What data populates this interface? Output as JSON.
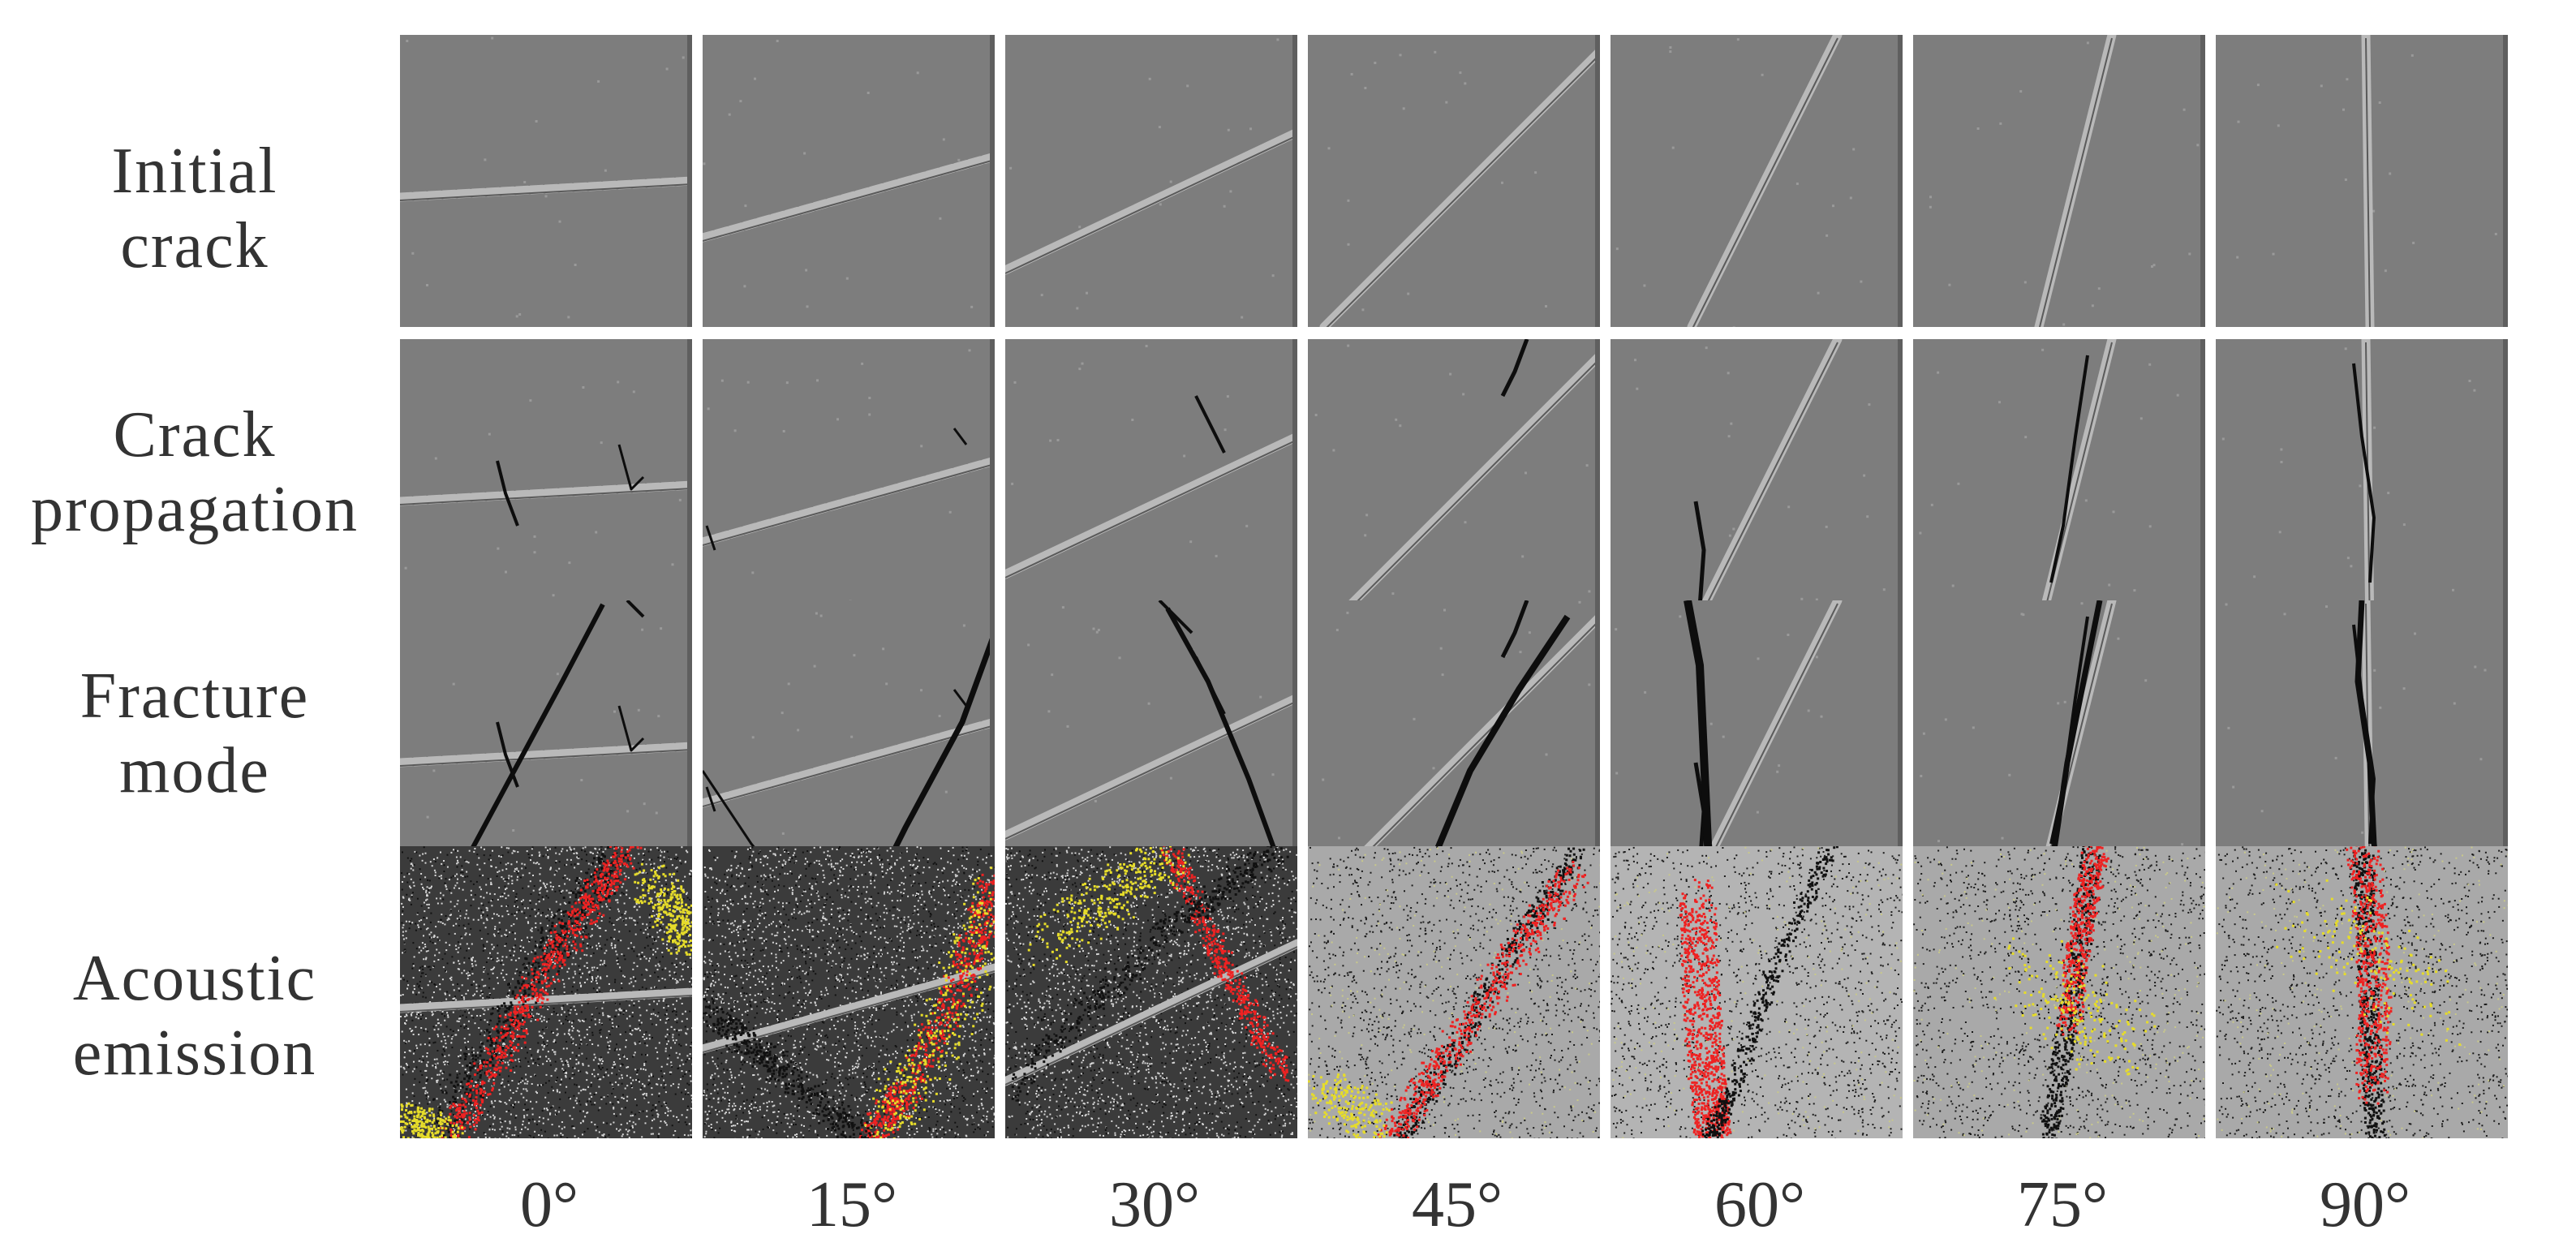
{
  "rows": [
    {
      "label_line1": "Initial",
      "label_line2": "crack"
    },
    {
      "label_line1": "Crack",
      "label_line2": "propagation"
    },
    {
      "label_line1": "Fracture",
      "label_line2": "mode"
    },
    {
      "label_line1": "Acoustic",
      "label_line2": "emission"
    }
  ],
  "columns": [
    {
      "label": "0°",
      "angle": 0
    },
    {
      "label": "15°",
      "angle": 15
    },
    {
      "label": "30°",
      "angle": 30
    },
    {
      "label": "45°",
      "angle": 45
    },
    {
      "label": "60°",
      "angle": 60
    },
    {
      "label": "75°",
      "angle": 75
    },
    {
      "label": "90°",
      "angle": 90
    }
  ],
  "colors": {
    "specimen_gray": "#7d7d7d",
    "preexisting_crack": "#b9b9b9",
    "new_crack": "#0d0d0d",
    "ae_red": "#ee2222",
    "ae_yellow": "#e6dc2a",
    "ae_black": "#111111"
  }
}
